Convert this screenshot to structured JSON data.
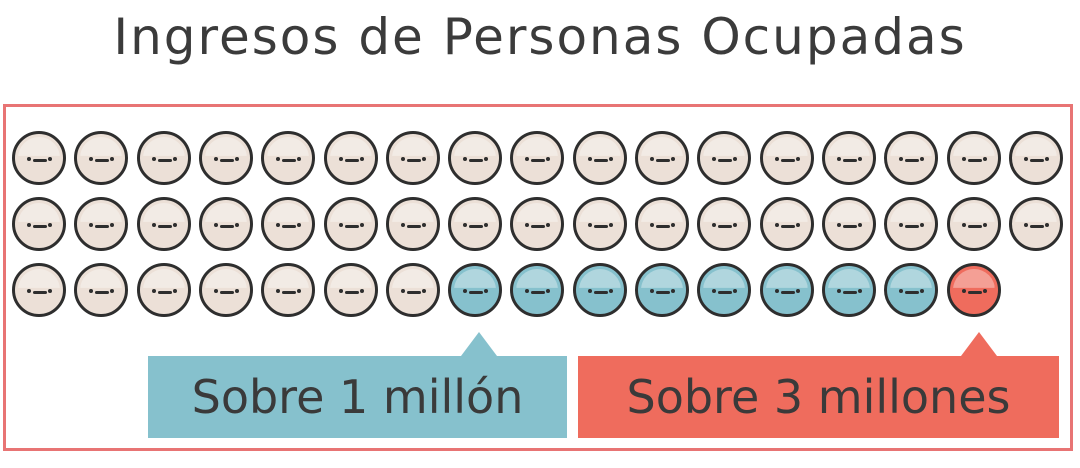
{
  "title": "Ingresos de Personas Ocupadas",
  "rows": [
    [
      "beige",
      "beige",
      "beige",
      "beige",
      "beige",
      "beige",
      "beige",
      "beige",
      "beige",
      "beige",
      "beige",
      "beige",
      "beige",
      "beige",
      "beige",
      "beige",
      "beige"
    ],
    [
      "beige",
      "beige",
      "beige",
      "beige",
      "beige",
      "beige",
      "beige",
      "beige",
      "beige",
      "beige",
      "beige",
      "beige",
      "beige",
      "beige",
      "beige",
      "beige",
      "beige"
    ],
    [
      "beige",
      "beige",
      "beige",
      "beige",
      "beige",
      "beige",
      "beige",
      "blue",
      "blue",
      "blue",
      "blue",
      "blue",
      "blue",
      "blue",
      "blue",
      "red"
    ]
  ],
  "legend": {
    "over_1m": "Sobre 1 millón",
    "over_3m": "Sobre 3 millones"
  },
  "colors": {
    "frame": "#e87474",
    "beige": "#ece0d7",
    "blue": "#86c1cd",
    "red": "#ef6c5d"
  }
}
